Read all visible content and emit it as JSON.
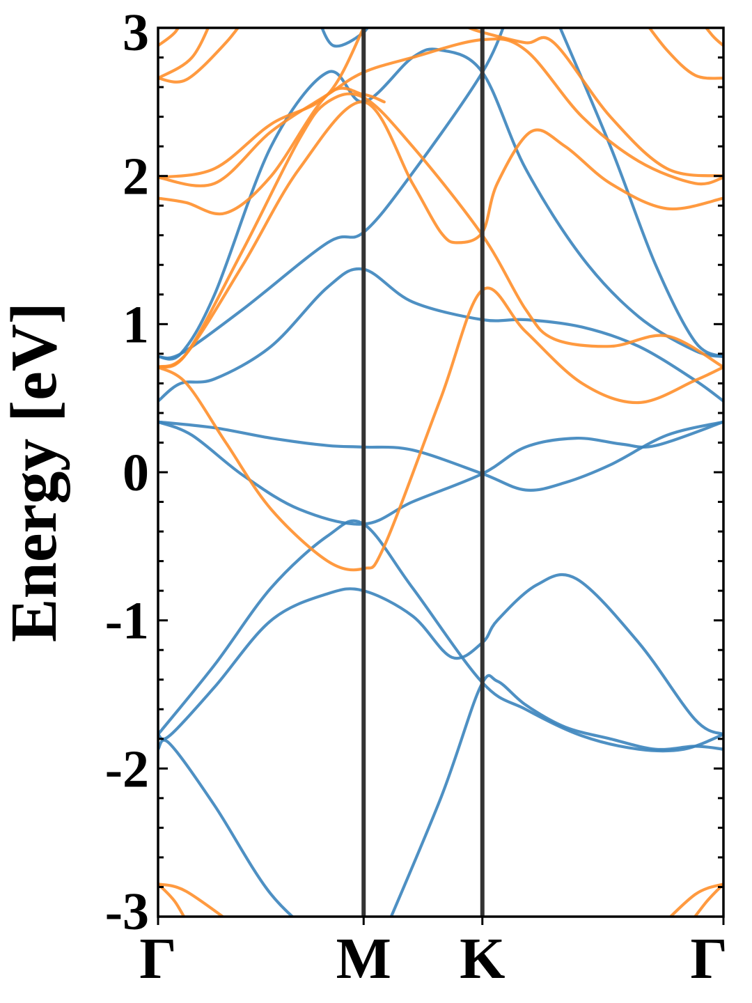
{
  "chart_data": {
    "type": "line",
    "title": "",
    "xlabel": "",
    "ylabel": "Energy [eV]",
    "ylim": [
      -3,
      3
    ],
    "yticks": [
      -3,
      -2,
      -1,
      0,
      1,
      2,
      3
    ],
    "ytick_labels": [
      "-3",
      "-2",
      "-1",
      "0",
      "1",
      "2",
      "3"
    ],
    "y_minor_step": 0.2,
    "xlim": [
      0,
      1
    ],
    "kpoints": [
      {
        "label": "Γ",
        "x": 0.0
      },
      {
        "label": "M",
        "x": 0.3636
      },
      {
        "label": "K",
        "x": 0.5736
      },
      {
        "label": "Γ",
        "x": 1.0
      }
    ],
    "grid": false,
    "legend": "none",
    "colors": {
      "spin_up": "#3b84bc",
      "spin_down": "#ff8f2b",
      "kpoint_lines": "#333333"
    },
    "series": [
      {
        "group": "spin_up",
        "values": [
          [
            0,
            -1.87
          ],
          [
            0.02,
            -1.83
          ],
          [
            0.1,
            -2.25
          ],
          [
            0.2,
            -2.85
          ],
          [
            0.3,
            -3.2
          ]
        ]
      },
      {
        "group": "spin_up",
        "values": [
          [
            0.39,
            -3.2
          ],
          [
            0.5,
            -2.2
          ],
          [
            0.57,
            -1.45
          ],
          [
            0.6,
            -1.41
          ],
          [
            0.65,
            -1.57
          ],
          [
            0.72,
            -1.72
          ],
          [
            0.8,
            -1.8
          ],
          [
            0.88,
            -1.87
          ],
          [
            0.95,
            -1.85
          ],
          [
            1.0,
            -1.87
          ]
        ]
      },
      {
        "group": "spin_up",
        "values": [
          [
            0,
            -1.77
          ],
          [
            0.02,
            -1.78
          ],
          [
            0.1,
            -1.45
          ],
          [
            0.2,
            -1.0
          ],
          [
            0.3,
            -0.82
          ],
          [
            0.3636,
            -0.8
          ],
          [
            0.45,
            -0.97
          ],
          [
            0.52,
            -1.25
          ],
          [
            0.5736,
            -1.15
          ],
          [
            0.6,
            -1.0
          ],
          [
            0.67,
            -0.76
          ],
          [
            0.74,
            -0.72
          ],
          [
            0.85,
            -1.15
          ],
          [
            0.95,
            -1.67
          ],
          [
            1.0,
            -1.77
          ]
        ]
      },
      {
        "group": "spin_up",
        "values": [
          [
            0,
            -1.77
          ],
          [
            0.1,
            -1.3
          ],
          [
            0.2,
            -0.78
          ],
          [
            0.3,
            -0.43
          ],
          [
            0.3636,
            -0.35
          ],
          [
            0.45,
            -0.78
          ],
          [
            0.5736,
            -1.42
          ],
          [
            0.65,
            -1.6
          ],
          [
            0.75,
            -1.78
          ],
          [
            0.85,
            -1.87
          ],
          [
            0.93,
            -1.87
          ],
          [
            1.0,
            -1.77
          ]
        ]
      },
      {
        "group": "spin_up",
        "values": [
          [
            0,
            0.34
          ],
          [
            0.1,
            0.3
          ],
          [
            0.2,
            0.23
          ],
          [
            0.3,
            0.18
          ],
          [
            0.3636,
            0.17
          ],
          [
            0.45,
            0.15
          ],
          [
            0.5736,
            -0.01
          ],
          [
            0.65,
            -0.12
          ],
          [
            0.72,
            -0.07
          ],
          [
            0.8,
            0.05
          ],
          [
            0.9,
            0.25
          ],
          [
            1.0,
            0.34
          ]
        ]
      },
      {
        "group": "spin_up",
        "values": [
          [
            0,
            0.34
          ],
          [
            0.06,
            0.25
          ],
          [
            0.15,
            -0.02
          ],
          [
            0.25,
            -0.25
          ],
          [
            0.3636,
            -0.35
          ],
          [
            0.45,
            -0.2
          ],
          [
            0.5736,
            -0.01
          ],
          [
            0.65,
            0.17
          ],
          [
            0.74,
            0.23
          ],
          [
            0.82,
            0.19
          ],
          [
            0.88,
            0.18
          ],
          [
            1.0,
            0.34
          ]
        ]
      },
      {
        "group": "spin_up",
        "values": [
          [
            0,
            0.48
          ],
          [
            0.04,
            0.6
          ],
          [
            0.1,
            0.63
          ],
          [
            0.2,
            0.85
          ],
          [
            0.3,
            1.25
          ],
          [
            0.3636,
            1.37
          ],
          [
            0.45,
            1.15
          ],
          [
            0.5736,
            1.03
          ],
          [
            0.65,
            1.03
          ],
          [
            0.75,
            0.98
          ],
          [
            0.85,
            0.85
          ],
          [
            0.95,
            0.62
          ],
          [
            1.0,
            0.48
          ]
        ]
      },
      {
        "group": "spin_up",
        "values": [
          [
            0,
            0.78
          ],
          [
            0.04,
            0.8
          ],
          [
            0.15,
            1.1
          ],
          [
            0.3,
            1.55
          ],
          [
            0.3636,
            1.62
          ],
          [
            0.45,
            2.02
          ],
          [
            0.5736,
            2.7
          ],
          [
            0.62,
            3.1
          ]
        ]
      },
      {
        "group": "spin_up",
        "values": [
          [
            0,
            0.78
          ],
          [
            0.04,
            0.8
          ],
          [
            0.1,
            1.2
          ],
          [
            0.2,
            2.2
          ],
          [
            0.3,
            2.7
          ],
          [
            0.3636,
            2.5
          ],
          [
            0.45,
            2.8
          ],
          [
            0.5,
            2.85
          ],
          [
            0.5736,
            2.7
          ],
          [
            0.65,
            2.05
          ],
          [
            0.75,
            1.45
          ],
          [
            0.85,
            1.05
          ],
          [
            0.95,
            0.82
          ],
          [
            1.0,
            0.78
          ]
        ]
      },
      {
        "group": "spin_up",
        "values": [
          [
            0.28,
            3.1
          ],
          [
            0.31,
            2.88
          ],
          [
            0.3636,
            2.97
          ],
          [
            0.38,
            3.1
          ]
        ]
      },
      {
        "group": "spin_up",
        "values": [
          [
            0.7,
            3.1
          ],
          [
            0.8,
            2.2
          ],
          [
            0.88,
            1.4
          ],
          [
            0.95,
            0.88
          ],
          [
            1.0,
            0.78
          ]
        ]
      },
      {
        "group": "spin_down",
        "values": [
          [
            0,
            0.71
          ],
          [
            0.05,
            0.6
          ],
          [
            0.12,
            0.2
          ],
          [
            0.2,
            -0.25
          ],
          [
            0.3,
            -0.6
          ],
          [
            0.3636,
            -0.65
          ],
          [
            0.4,
            -0.5
          ],
          [
            0.5,
            0.5
          ],
          [
            0.5736,
            1.23
          ],
          [
            0.65,
            0.95
          ],
          [
            0.75,
            0.6
          ],
          [
            0.85,
            0.47
          ],
          [
            0.95,
            0.62
          ],
          [
            1.0,
            0.71
          ]
        ]
      },
      {
        "group": "spin_down",
        "values": [
          [
            0,
            0.71
          ],
          [
            0.05,
            0.8
          ],
          [
            0.15,
            1.4
          ],
          [
            0.25,
            2.05
          ],
          [
            0.3636,
            2.5
          ],
          [
            0.45,
            1.95
          ],
          [
            0.5,
            1.62
          ],
          [
            0.53,
            1.55
          ],
          [
            0.5736,
            1.62
          ],
          [
            0.6,
            1.95
          ],
          [
            0.66,
            2.3
          ],
          [
            0.72,
            2.2
          ],
          [
            0.8,
            1.95
          ],
          [
            0.9,
            1.78
          ],
          [
            1.0,
            1.85
          ]
        ]
      },
      {
        "group": "spin_down",
        "values": [
          [
            0,
            0.71
          ],
          [
            0.05,
            0.8
          ],
          [
            0.15,
            1.5
          ],
          [
            0.25,
            2.25
          ],
          [
            0.3,
            2.5
          ],
          [
            0.3636,
            2.53
          ],
          [
            0.45,
            2.2
          ],
          [
            0.5736,
            1.6
          ],
          [
            0.65,
            1.1
          ],
          [
            0.7,
            0.9
          ],
          [
            0.8,
            0.85
          ],
          [
            0.9,
            0.92
          ],
          [
            1.0,
            0.71
          ]
        ]
      },
      {
        "group": "spin_down",
        "values": [
          [
            0,
            1.85
          ],
          [
            0.05,
            1.82
          ],
          [
            0.12,
            1.75
          ],
          [
            0.2,
            2.0
          ],
          [
            0.3,
            2.55
          ],
          [
            0.3636,
            2.55
          ],
          [
            0.4,
            2.5
          ]
        ]
      },
      {
        "group": "spin_down",
        "values": [
          [
            0,
            1.99
          ],
          [
            0.1,
            1.95
          ],
          [
            0.2,
            2.3
          ],
          [
            0.3,
            2.55
          ],
          [
            0.3636,
            2.7
          ],
          [
            0.45,
            2.8
          ],
          [
            0.5736,
            2.92
          ],
          [
            0.65,
            2.85
          ],
          [
            0.75,
            2.4
          ],
          [
            0.85,
            2.1
          ],
          [
            0.95,
            1.95
          ],
          [
            1.0,
            1.99
          ]
        ]
      },
      {
        "group": "spin_down",
        "values": [
          [
            0,
            1.99
          ],
          [
            0.1,
            2.05
          ],
          [
            0.2,
            2.35
          ],
          [
            0.3,
            2.55
          ],
          [
            0.3636,
            3.0
          ]
        ]
      },
      {
        "group": "spin_down",
        "values": [
          [
            0,
            2.66
          ],
          [
            0.05,
            2.65
          ],
          [
            0.12,
            2.9
          ],
          [
            0.16,
            3.1
          ]
        ]
      },
      {
        "group": "spin_down",
        "values": [
          [
            0,
            2.66
          ],
          [
            0.06,
            2.8
          ],
          [
            0.1,
            3.1
          ]
        ]
      },
      {
        "group": "spin_down",
        "values": [
          [
            0,
            2.88
          ],
          [
            0.03,
            2.97
          ],
          [
            0.05,
            3.1
          ]
        ]
      },
      {
        "group": "spin_down",
        "values": [
          [
            0.55,
            3.0
          ],
          [
            0.5736,
            2.97
          ],
          [
            0.65,
            2.9
          ],
          [
            0.7,
            2.9
          ],
          [
            0.8,
            2.4
          ],
          [
            0.9,
            2.05
          ],
          [
            1.0,
            2.0
          ]
        ]
      },
      {
        "group": "spin_down",
        "values": [
          [
            0.85,
            3.1
          ],
          [
            0.9,
            2.85
          ],
          [
            0.95,
            2.68
          ],
          [
            1.0,
            2.66
          ]
        ]
      },
      {
        "group": "spin_down",
        "values": [
          [
            0.95,
            3.1
          ],
          [
            0.98,
            2.95
          ],
          [
            1.0,
            2.88
          ]
        ]
      },
      {
        "group": "spin_down",
        "values": [
          [
            0,
            -2.78
          ],
          [
            0.05,
            -2.83
          ],
          [
            0.15,
            -3.1
          ]
        ]
      },
      {
        "group": "spin_down",
        "values": [
          [
            0,
            -2.78
          ],
          [
            0.03,
            -2.9
          ],
          [
            0.06,
            -3.1
          ]
        ]
      },
      {
        "group": "spin_down",
        "values": [
          [
            0.88,
            -3.1
          ],
          [
            0.95,
            -2.85
          ],
          [
            1.0,
            -2.78
          ]
        ]
      },
      {
        "group": "spin_down",
        "values": [
          [
            0.93,
            -3.1
          ],
          [
            0.97,
            -2.9
          ],
          [
            1.0,
            -2.78
          ]
        ]
      }
    ]
  }
}
